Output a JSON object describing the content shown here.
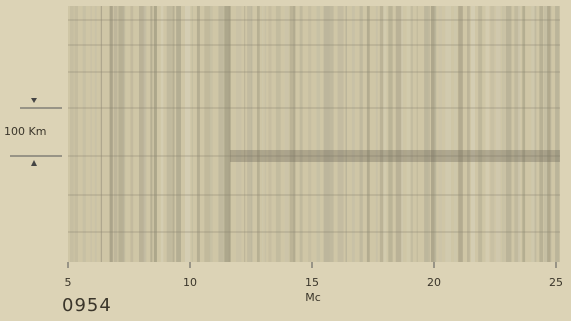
{
  "chart_data": {
    "type": "ionogram",
    "xlabel": "Mc",
    "xlim": [
      5,
      25
    ],
    "xticks": [
      5,
      10,
      15,
      20,
      25
    ],
    "annotations": [
      "0954",
      "100 Km"
    ]
  }
}
